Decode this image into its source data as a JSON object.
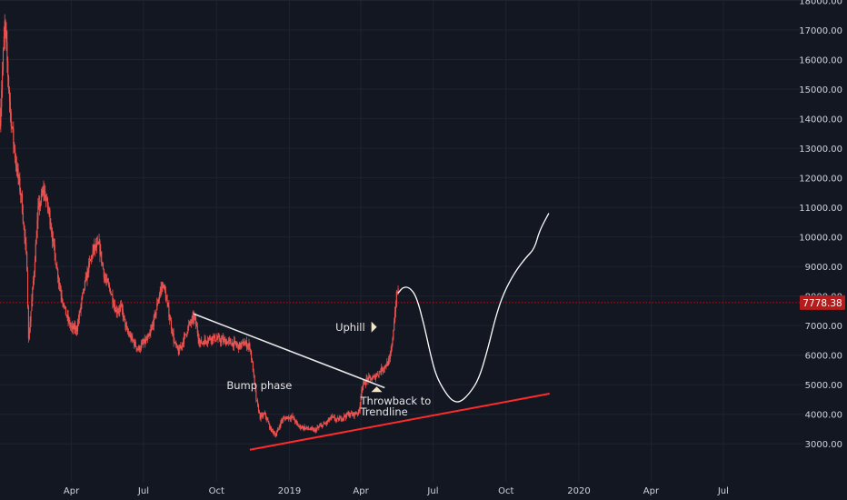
{
  "chart_data": {
    "type": "candlestick",
    "ylim": [
      2500,
      18000
    ],
    "y_ticks": [
      3000,
      4000,
      5000,
      6000,
      7000,
      8000,
      9000,
      10000,
      11000,
      12000,
      13000,
      14000,
      15000,
      16000,
      17000,
      18000
    ],
    "y_tick_labels": [
      "3000.00",
      "4000.00",
      "5000.00",
      "6000.00",
      "7000.00",
      "8000.00",
      "9000.00",
      "10000.00",
      "11000.00",
      "12000.00",
      "13000.00",
      "14000.00",
      "15000.00",
      "16000.00",
      "17000.00",
      "18000.00"
    ],
    "x_tick_labels": [
      "Apr",
      "Jul",
      "Oct",
      "2019",
      "Apr",
      "Jul",
      "Oct",
      "2020",
      "Apr",
      "Jul"
    ],
    "x_tick_dates": [
      "2018-04-01",
      "2018-07-01",
      "2018-10-01",
      "2019-01-01",
      "2019-04-01",
      "2019-07-01",
      "2019-10-01",
      "2020-01-01",
      "2020-04-01",
      "2020-07-01"
    ],
    "current_price": 7778.38,
    "current_price_label": "7778.38",
    "colors": {
      "background": "#131722",
      "candle": "#ef5350",
      "trendline": "#ff2a2a",
      "price_line": "#ff0000",
      "projection": "#ffffff",
      "grid": "#1f2330"
    },
    "price_path": [
      [
        "2018-01-01",
        14000
      ],
      [
        "2018-01-07",
        17200
      ],
      [
        "2018-01-14",
        14200
      ],
      [
        "2018-01-21",
        12500
      ],
      [
        "2018-01-28",
        11300
      ],
      [
        "2018-02-04",
        9000
      ],
      [
        "2018-02-06",
        6500
      ],
      [
        "2018-02-12",
        8500
      ],
      [
        "2018-02-18",
        10900
      ],
      [
        "2018-02-25",
        11600
      ],
      [
        "2018-03-04",
        10800
      ],
      [
        "2018-03-11",
        9400
      ],
      [
        "2018-03-18",
        8200
      ],
      [
        "2018-03-25",
        7400
      ],
      [
        "2018-04-01",
        6900
      ],
      [
        "2018-04-08",
        6900
      ],
      [
        "2018-04-15",
        8000
      ],
      [
        "2018-04-22",
        8900
      ],
      [
        "2018-04-29",
        9600
      ],
      [
        "2018-05-06",
        9700
      ],
      [
        "2018-05-13",
        8600
      ],
      [
        "2018-05-20",
        8200
      ],
      [
        "2018-05-27",
        7500
      ],
      [
        "2018-06-03",
        7600
      ],
      [
        "2018-06-10",
        6800
      ],
      [
        "2018-06-17",
        6500
      ],
      [
        "2018-06-24",
        6200
      ],
      [
        "2018-07-01",
        6400
      ],
      [
        "2018-07-08",
        6600
      ],
      [
        "2018-07-15",
        7300
      ],
      [
        "2018-07-22",
        8200
      ],
      [
        "2018-07-26",
        8400
      ],
      [
        "2018-08-02",
        7400
      ],
      [
        "2018-08-09",
        6400
      ],
      [
        "2018-08-14",
        6100
      ],
      [
        "2018-08-20",
        6500
      ],
      [
        "2018-08-27",
        7000
      ],
      [
        "2018-09-03",
        7300
      ],
      [
        "2018-09-10",
        6400
      ],
      [
        "2018-09-17",
        6500
      ],
      [
        "2018-09-24",
        6600
      ],
      [
        "2018-10-01",
        6550
      ],
      [
        "2018-10-08",
        6500
      ],
      [
        "2018-10-15",
        6450
      ],
      [
        "2018-10-22",
        6400
      ],
      [
        "2018-10-29",
        6300
      ],
      [
        "2018-11-05",
        6400
      ],
      [
        "2018-11-12",
        6300
      ],
      [
        "2018-11-16",
        5500
      ],
      [
        "2018-11-20",
        4500
      ],
      [
        "2018-11-25",
        3900
      ],
      [
        "2018-12-01",
        4000
      ],
      [
        "2018-12-08",
        3500
      ],
      [
        "2018-12-15",
        3300
      ],
      [
        "2018-12-22",
        3800
      ],
      [
        "2018-12-29",
        3900
      ],
      [
        "2019-01-05",
        3900
      ],
      [
        "2019-01-12",
        3600
      ],
      [
        "2019-01-19",
        3550
      ],
      [
        "2019-01-26",
        3500
      ],
      [
        "2019-02-02",
        3450
      ],
      [
        "2019-02-09",
        3600
      ],
      [
        "2019-02-16",
        3700
      ],
      [
        "2019-02-23",
        3900
      ],
      [
        "2019-03-02",
        3800
      ],
      [
        "2019-03-09",
        3900
      ],
      [
        "2019-03-16",
        4000
      ],
      [
        "2019-03-23",
        4000
      ],
      [
        "2019-03-30",
        4100
      ],
      [
        "2019-04-02",
        4900
      ],
      [
        "2019-04-09",
        5200
      ],
      [
        "2019-04-16",
        5200
      ],
      [
        "2019-04-23",
        5400
      ],
      [
        "2019-04-30",
        5600
      ],
      [
        "2019-05-07",
        5800
      ],
      [
        "2019-05-10",
        6300
      ],
      [
        "2019-05-13",
        7200
      ],
      [
        "2019-05-16",
        8000
      ],
      [
        "2019-05-18",
        8200
      ]
    ],
    "resistance_trendline": [
      [
        "2018-09-02",
        7400
      ],
      [
        "2019-05-01",
        4900
      ]
    ],
    "support_trendline": [
      [
        "2018-11-12",
        2800
      ],
      [
        "2019-11-25",
        4700
      ]
    ],
    "projection_path": [
      [
        "2019-05-18",
        8100
      ],
      [
        "2019-05-24",
        8300
      ],
      [
        "2019-06-01",
        8300
      ],
      [
        "2019-06-10",
        8000
      ],
      [
        "2019-06-20",
        7000
      ],
      [
        "2019-06-28",
        6000
      ],
      [
        "2019-07-05",
        5300
      ],
      [
        "2019-07-15",
        4800
      ],
      [
        "2019-07-25",
        4450
      ],
      [
        "2019-08-04",
        4400
      ],
      [
        "2019-08-16",
        4700
      ],
      [
        "2019-08-28",
        5200
      ],
      [
        "2019-09-08",
        6200
      ],
      [
        "2019-09-18",
        7300
      ],
      [
        "2019-09-28",
        8100
      ],
      [
        "2019-10-12",
        8800
      ],
      [
        "2019-10-26",
        9300
      ],
      [
        "2019-11-06",
        9600
      ],
      [
        "2019-11-12",
        10200
      ],
      [
        "2019-11-24",
        10800
      ]
    ],
    "annotations": [
      {
        "text": "Uphill",
        "marker": "triangle-right",
        "date": "2019-04-12",
        "price": 6950
      },
      {
        "text": "Bump phase",
        "date": "2018-11-24",
        "price": 4850
      },
      {
        "text": "Throwback to Trendline",
        "lines": [
          "Throwback to",
          "Trendline"
        ],
        "marker": "triangle-up",
        "date": "2019-04-21",
        "price": 4200
      }
    ]
  }
}
